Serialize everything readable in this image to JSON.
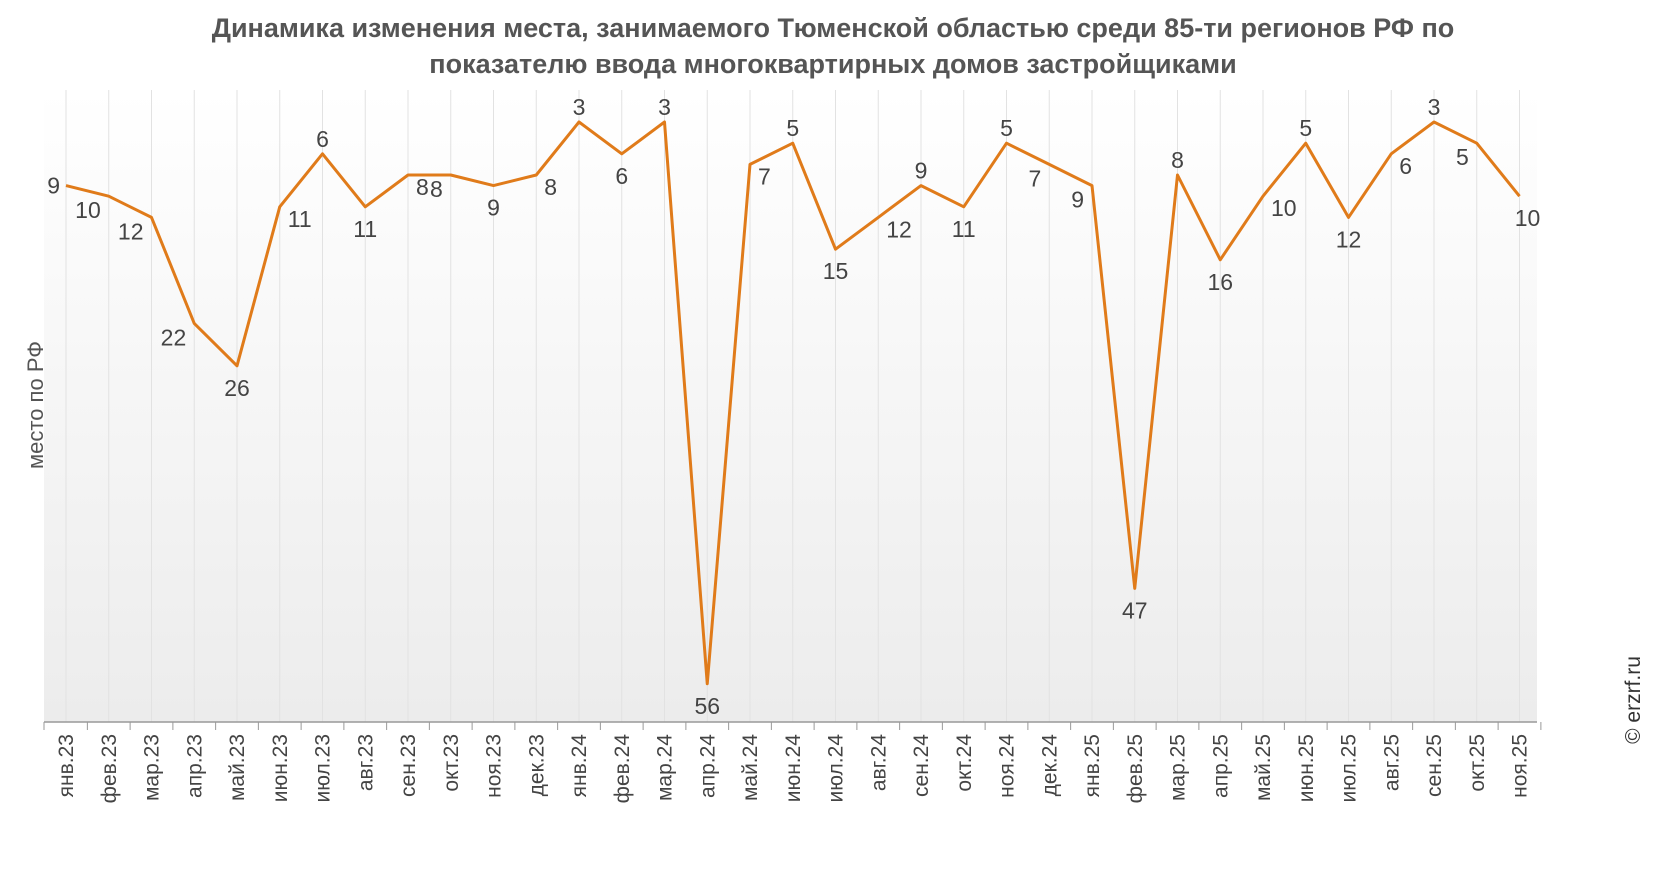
{
  "chart_data": {
    "type": "line",
    "title_lines": [
      "Динамика изменения места, занимаемого Тюменской областью среди 85-ти регионов РФ по",
      "показателю ввода многоквартирных домов застройщиками"
    ],
    "xlabel": "",
    "ylabel": "место по РФ",
    "y_inverted": true,
    "ylim": [
      0,
      58
    ],
    "grid": {
      "vertical": true,
      "horizontal": false
    },
    "line_color": "#E07B1A",
    "categories": [
      "янв.23",
      "фев.23",
      "мар.23",
      "апр.23",
      "май.23",
      "июн.23",
      "июл.23",
      "авг.23",
      "сен.23",
      "окт.23",
      "ноя.23",
      "дек.23",
      "янв.24",
      "фев.24",
      "мар.24",
      "апр.24",
      "май.24",
      "июн.24",
      "июл.24",
      "авг.24",
      "сен.24",
      "окт.24",
      "ноя.24",
      "дек.24",
      "янв.25",
      "фев.25",
      "мар.25",
      "апр.25",
      "май.25",
      "июн.25",
      "июл.25",
      "авг.25",
      "сен.25",
      "окт.25",
      "ноя.25"
    ],
    "series": [
      {
        "values": [
          9,
          10,
          12,
          22,
          26,
          11,
          6,
          11,
          8,
          8,
          9,
          8,
          3,
          6,
          3,
          56,
          7,
          5,
          15,
          12,
          9,
          11,
          5,
          7,
          9,
          47,
          8,
          16,
          10,
          5,
          12,
          6,
          3,
          5,
          10
        ]
      }
    ]
  },
  "watermark": "© erzrf.ru"
}
